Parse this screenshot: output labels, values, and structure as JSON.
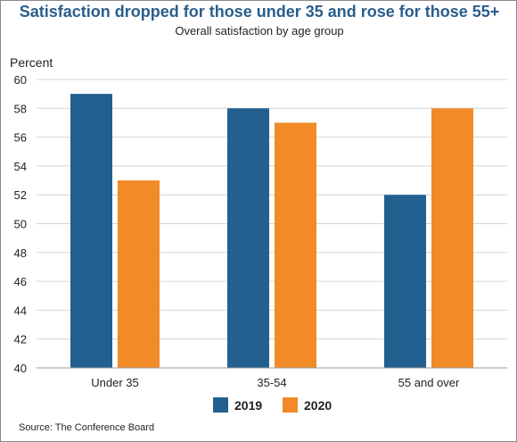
{
  "chart_data": {
    "type": "bar",
    "title": "Satisfaction dropped for those under 35 and rose for those 55+",
    "subtitle": "Overall satisfaction by age group",
    "ylabel": "Percent",
    "xlabel": "",
    "ylim": [
      40,
      60
    ],
    "yticks": [
      40,
      42,
      44,
      46,
      48,
      50,
      52,
      54,
      56,
      58,
      60
    ],
    "grid": true,
    "legend": "bottom-center",
    "categories": [
      "Under 35",
      "35-54",
      "55 and over"
    ],
    "series": [
      {
        "name": "2019",
        "color": "#23608f",
        "values": [
          59,
          58,
          52
        ]
      },
      {
        "name": "2020",
        "color": "#f28a27",
        "values": [
          53,
          57,
          58
        ]
      }
    ],
    "source": "Source: The Conference Board"
  }
}
